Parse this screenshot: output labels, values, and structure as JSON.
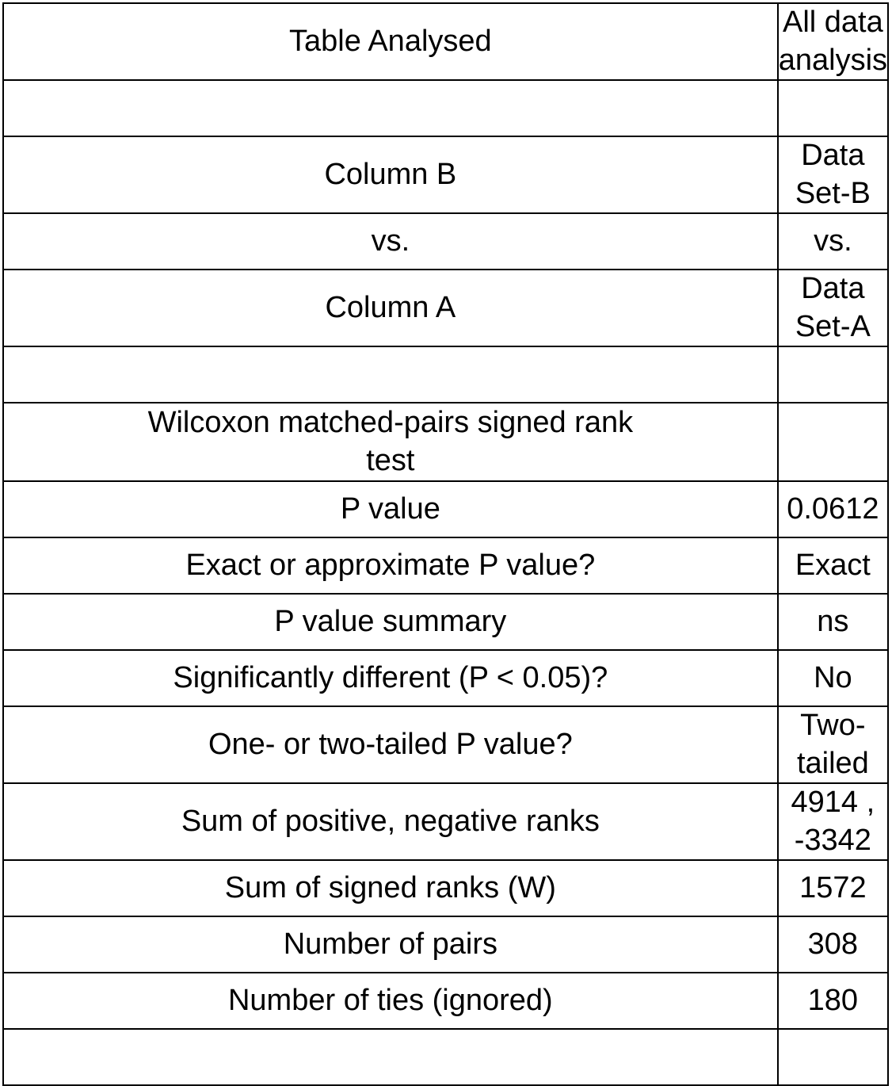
{
  "table": {
    "header": [
      "Table Analysed",
      "All data analysis"
    ],
    "rows": [
      [
        "Column B",
        "Data Set-B"
      ],
      [
        "vs.",
        "vs."
      ],
      [
        "Column A",
        "Data Set-A"
      ],
      [
        "Wilcoxon matched-pairs signed rank test"
      ],
      [
        "P value",
        0.0612
      ],
      [
        "Exact or approximate P value?",
        "Exact"
      ],
      [
        "P value summary",
        "ns"
      ],
      [
        "Significantly different (P < 0.05)?",
        "No"
      ],
      [
        "One- or two-tailed P value?",
        "Two-tailed"
      ],
      [
        "Sum of positive, negative ranks",
        "4914 , -3342"
      ],
      [
        "Sum of signed ranks (W)",
        1572
      ],
      [
        "Number of pairs",
        308
      ],
      [
        "Number of ties (ignored)",
        180
      ]
    ]
  }
}
